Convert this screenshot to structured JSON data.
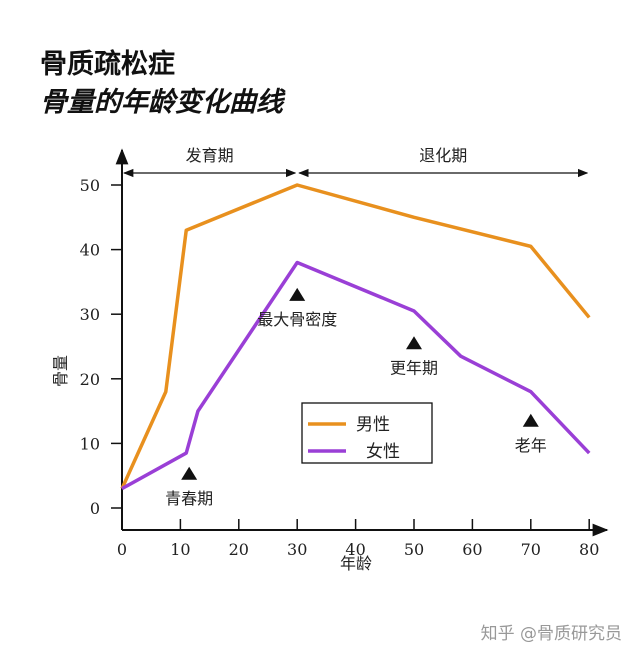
{
  "title": "骨质疏松症",
  "subtitle": "骨量的年龄变化曲线",
  "watermark": "知乎 @骨质研究员",
  "chart_data": {
    "type": "line",
    "xlabel": "年龄",
    "ylabel": "骨量",
    "xlim": [
      0,
      80
    ],
    "ylim": [
      0,
      50
    ],
    "xticks": [
      0,
      10,
      20,
      30,
      40,
      50,
      60,
      70,
      80
    ],
    "yticks": [
      0,
      10,
      20,
      30,
      40,
      50
    ],
    "grid": false,
    "legend": "center-bottom",
    "periods": [
      {
        "label": "发育期",
        "from": 0,
        "to": 30
      },
      {
        "label": "退化期",
        "from": 30,
        "to": 80
      }
    ],
    "series": [
      {
        "name": "男性",
        "color": "#E8901E",
        "points": [
          [
            0,
            3
          ],
          [
            7.5,
            18
          ],
          [
            11,
            43
          ],
          [
            30,
            50
          ],
          [
            50,
            45
          ],
          [
            70,
            40.5
          ],
          [
            80,
            29.5
          ]
        ]
      },
      {
        "name": "女性",
        "color": "#9A3FD6",
        "points": [
          [
            0,
            3
          ],
          [
            11,
            8.5
          ],
          [
            13,
            15
          ],
          [
            30,
            38
          ],
          [
            50,
            30.5
          ],
          [
            58,
            23.5
          ],
          [
            70,
            18
          ],
          [
            80,
            8.5
          ]
        ]
      }
    ],
    "annotations": [
      {
        "label": "青春期",
        "x": 11.5,
        "y": 5.3
      },
      {
        "label": "最大骨密度",
        "x": 30,
        "y": 33
      },
      {
        "label": "更年期",
        "x": 50,
        "y": 25.5
      },
      {
        "label": "老年",
        "x": 70,
        "y": 13.5
      }
    ]
  }
}
